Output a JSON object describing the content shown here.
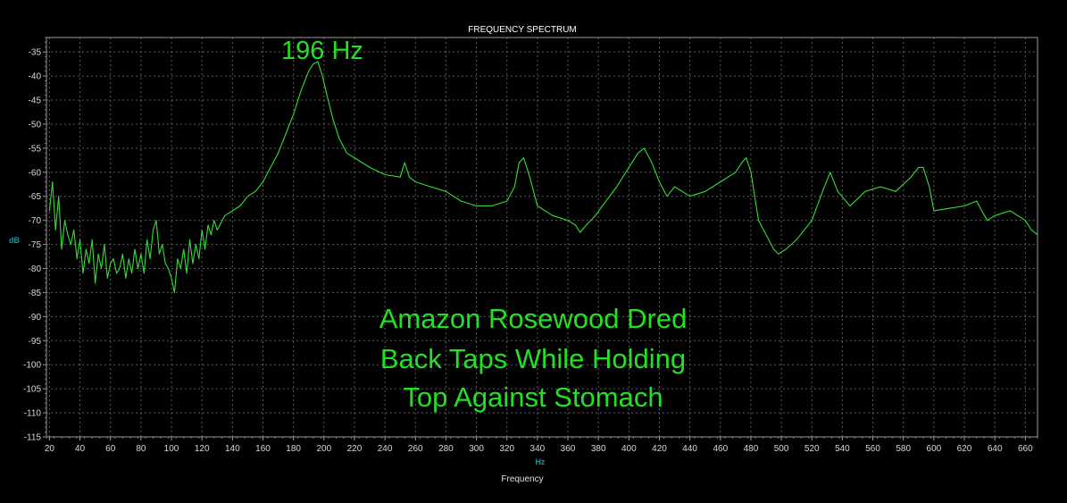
{
  "chart_data": {
    "type": "line",
    "title": "FREQUENCY SPECTRUM",
    "xlabel": "Frequency",
    "xunit": "Hz",
    "ylabel": "dB",
    "xlim": [
      18,
      668
    ],
    "ylim": [
      -115,
      -32
    ],
    "xticks": [
      20,
      40,
      60,
      80,
      100,
      120,
      140,
      160,
      180,
      200,
      220,
      240,
      260,
      280,
      300,
      320,
      340,
      360,
      380,
      400,
      420,
      440,
      460,
      480,
      500,
      520,
      540,
      560,
      580,
      600,
      620,
      640,
      660
    ],
    "yticks": [
      -35,
      -40,
      -45,
      -50,
      -55,
      -60,
      -65,
      -70,
      -75,
      -80,
      -85,
      -90,
      -95,
      -100,
      -105,
      -110,
      -115
    ],
    "grid": true,
    "line_color": "#33dd33",
    "grid_color": "#5a5a5a",
    "series": [
      {
        "x": [
          20,
          22,
          24,
          26,
          28,
          30,
          32,
          34,
          36,
          38,
          40,
          42,
          44,
          46,
          48,
          50,
          52,
          54,
          56,
          58,
          60,
          62,
          64,
          66,
          68,
          70,
          72,
          74,
          76,
          78,
          80,
          82,
          84,
          86,
          88,
          90,
          92,
          94,
          96,
          98,
          100,
          102,
          104,
          106,
          108,
          110,
          112,
          114,
          116,
          118,
          120,
          122,
          124,
          126,
          128,
          130,
          135,
          140,
          145,
          150,
          155,
          160,
          165,
          170,
          175,
          180,
          185,
          190,
          193,
          196,
          199,
          202,
          206,
          210,
          215,
          220,
          230,
          240,
          250,
          253,
          256,
          260,
          270,
          280,
          290,
          300,
          310,
          320,
          325,
          328,
          331,
          335,
          340,
          350,
          360,
          365,
          368,
          372,
          378,
          385,
          392,
          400,
          406,
          410,
          415,
          420,
          425,
          430,
          435,
          440,
          450,
          460,
          470,
          474,
          477,
          480,
          485,
          490,
          495,
          498,
          503,
          510,
          520,
          527,
          532,
          537,
          545,
          555,
          565,
          575,
          585,
          590,
          593,
          597,
          600,
          610,
          620,
          628,
          635,
          640,
          650,
          655,
          660,
          664,
          668
        ],
        "y": [
          -68,
          -62,
          -72,
          -65,
          -76,
          -70,
          -73,
          -75,
          -72,
          -78,
          -74,
          -81,
          -76,
          -79,
          -74,
          -83,
          -77,
          -80,
          -75,
          -82,
          -79,
          -78,
          -81,
          -80,
          -77,
          -82,
          -78,
          -81,
          -76,
          -80,
          -77,
          -81,
          -74,
          -78,
          -72,
          -70,
          -77,
          -75,
          -79,
          -80,
          -82,
          -85,
          -78,
          -80,
          -76,
          -81,
          -74,
          -79,
          -75,
          -78,
          -72,
          -76,
          -71,
          -73,
          -70,
          -72,
          -69,
          -68,
          -67,
          -65,
          -64,
          -62,
          -59,
          -56,
          -52,
          -48,
          -43,
          -39,
          -37.5,
          -37,
          -40,
          -44,
          -49,
          -53,
          -56,
          -57,
          -59,
          -60.5,
          -61,
          -58,
          -61,
          -62,
          -63,
          -64,
          -66,
          -67,
          -67,
          -66,
          -63,
          -58,
          -57,
          -61,
          -67,
          -69,
          -70,
          -71,
          -72.5,
          -71,
          -69,
          -66,
          -63,
          -59,
          -56,
          -55,
          -58,
          -62,
          -65,
          -63,
          -64,
          -65,
          -64,
          -62,
          -60,
          -58,
          -57,
          -60,
          -70,
          -73,
          -76,
          -77,
          -76,
          -74,
          -70,
          -64,
          -60,
          -64,
          -67,
          -64,
          -63,
          -64,
          -61,
          -59,
          -59,
          -63,
          -68,
          -67.5,
          -67,
          -66,
          -70,
          -69,
          -68,
          -69,
          -70,
          -72,
          -73
        ]
      }
    ]
  },
  "annotations": {
    "peak_label": "196 Hz",
    "caption": [
      "Amazon Rosewood Dred",
      "Back Taps While Holding",
      "Top Against Stomach"
    ]
  }
}
